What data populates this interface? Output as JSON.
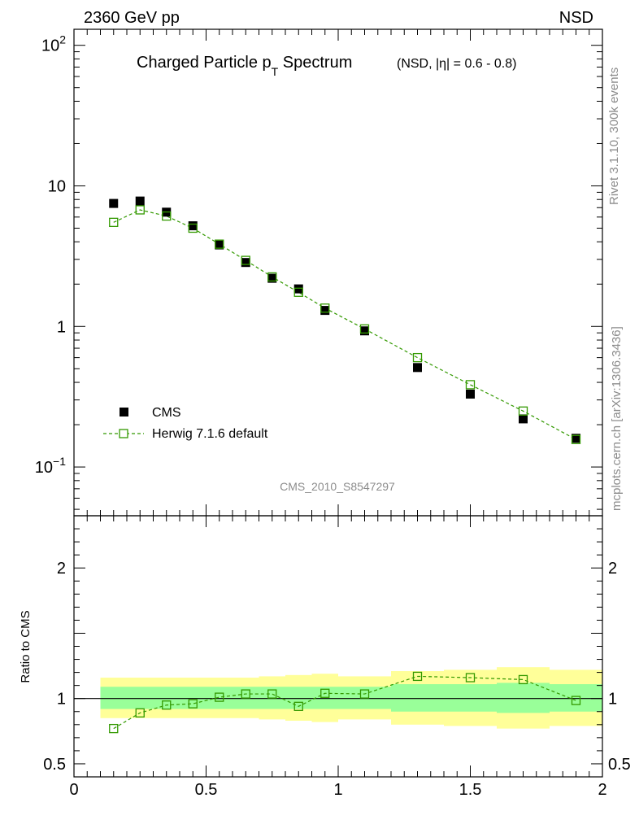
{
  "header": {
    "left": "2360 GeV pp",
    "right": "NSD"
  },
  "side_labels": {
    "rivet": "Rivet 3.1.10,  300k events",
    "mcplots": "mcplots.cern.ch [arXiv:1306.3436]"
  },
  "analysis_tag": "CMS_2010_S8547297",
  "colors": {
    "herwig": "#339900",
    "data": "#000000",
    "band_inner": "#99ff99",
    "band_outer": "#ffff99"
  },
  "chart_data": [
    {
      "type": "scatter",
      "title_main": "Charged Particle p",
      "title_sub": "T",
      "title_rest": " Spectrum",
      "title_extra": "(NSD, |η| = 0.6 - 0.8)",
      "xlim": [
        0,
        2
      ],
      "ylim": [
        0.045,
        130
      ],
      "yscale": "log",
      "y_ticklabels": [
        {
          "value": 100,
          "base": "10",
          "exp": "2"
        },
        {
          "value": 10,
          "base": "10",
          "exp": ""
        },
        {
          "value": 1,
          "base": "1",
          "exp": ""
        },
        {
          "value": 0.1,
          "base": "10",
          "exp": "−1"
        }
      ],
      "legend": {
        "data_label": "CMS",
        "mc_label": "Herwig 7.1.6 default",
        "position": "bottom-left"
      },
      "series": [
        {
          "name": "CMS",
          "x": [
            0.15,
            0.25,
            0.35,
            0.45,
            0.55,
            0.65,
            0.75,
            0.85,
            0.95,
            1.1,
            1.3,
            1.5,
            1.7,
            1.9
          ],
          "y": [
            7.5,
            7.8,
            6.5,
            5.2,
            3.8,
            2.85,
            2.2,
            1.85,
            1.3,
            0.93,
            0.51,
            0.33,
            0.22,
            0.16
          ]
        },
        {
          "name": "Herwig 7.1.6 default",
          "x": [
            0.15,
            0.25,
            0.35,
            0.45,
            0.55,
            0.65,
            0.75,
            0.85,
            0.95,
            1.1,
            1.3,
            1.5,
            1.7,
            1.9
          ],
          "y": [
            5.5,
            6.75,
            6.1,
            5.0,
            3.85,
            2.95,
            2.25,
            1.75,
            1.35,
            0.96,
            0.6,
            0.385,
            0.25,
            0.157
          ]
        }
      ]
    },
    {
      "type": "line",
      "ylabel": "Ratio to CMS",
      "xlim": [
        0,
        2
      ],
      "ylim": [
        0.4,
        2.4
      ],
      "x_ticklabels": [
        "0",
        "0.5",
        "1",
        "1.5",
        "2"
      ],
      "y_ticklabels": [
        "2",
        "1",
        "0.5"
      ],
      "bins": [
        {
          "lo": 0.1,
          "hi": 0.2,
          "inner": [
            0.92,
            1.09
          ],
          "outer": [
            0.85,
            1.16
          ]
        },
        {
          "lo": 0.2,
          "hi": 0.3,
          "inner": [
            0.92,
            1.09
          ],
          "outer": [
            0.85,
            1.16
          ]
        },
        {
          "lo": 0.3,
          "hi": 0.4,
          "inner": [
            0.92,
            1.09
          ],
          "outer": [
            0.85,
            1.16
          ]
        },
        {
          "lo": 0.4,
          "hi": 0.5,
          "inner": [
            0.92,
            1.09
          ],
          "outer": [
            0.85,
            1.16
          ]
        },
        {
          "lo": 0.5,
          "hi": 0.6,
          "inner": [
            0.92,
            1.09
          ],
          "outer": [
            0.85,
            1.16
          ]
        },
        {
          "lo": 0.6,
          "hi": 0.7,
          "inner": [
            0.92,
            1.09
          ],
          "outer": [
            0.85,
            1.16
          ]
        },
        {
          "lo": 0.7,
          "hi": 0.8,
          "inner": [
            0.92,
            1.09
          ],
          "outer": [
            0.84,
            1.17
          ]
        },
        {
          "lo": 0.8,
          "hi": 0.9,
          "inner": [
            0.92,
            1.09
          ],
          "outer": [
            0.83,
            1.18
          ]
        },
        {
          "lo": 0.9,
          "hi": 1.0,
          "inner": [
            0.92,
            1.09
          ],
          "outer": [
            0.82,
            1.19
          ]
        },
        {
          "lo": 1.0,
          "hi": 1.2,
          "inner": [
            0.92,
            1.09
          ],
          "outer": [
            0.84,
            1.17
          ]
        },
        {
          "lo": 1.2,
          "hi": 1.4,
          "inner": [
            0.9,
            1.11
          ],
          "outer": [
            0.8,
            1.21
          ]
        },
        {
          "lo": 1.4,
          "hi": 1.6,
          "inner": [
            0.9,
            1.11
          ],
          "outer": [
            0.79,
            1.22
          ]
        },
        {
          "lo": 1.6,
          "hi": 1.8,
          "inner": [
            0.89,
            1.12
          ],
          "outer": [
            0.77,
            1.24
          ]
        },
        {
          "lo": 1.8,
          "hi": 2.0,
          "inner": [
            0.9,
            1.11
          ],
          "outer": [
            0.79,
            1.22
          ]
        }
      ],
      "series": [
        {
          "name": "Herwig 7.1.6 default",
          "x": [
            0.15,
            0.25,
            0.35,
            0.45,
            0.55,
            0.65,
            0.75,
            0.85,
            0.95,
            1.1,
            1.3,
            1.5,
            1.7,
            1.9
          ],
          "y": [
            0.77,
            0.89,
            0.95,
            0.96,
            1.01,
            1.035,
            1.035,
            0.94,
            1.04,
            1.035,
            1.17,
            1.16,
            1.145,
            0.985
          ]
        }
      ]
    }
  ]
}
